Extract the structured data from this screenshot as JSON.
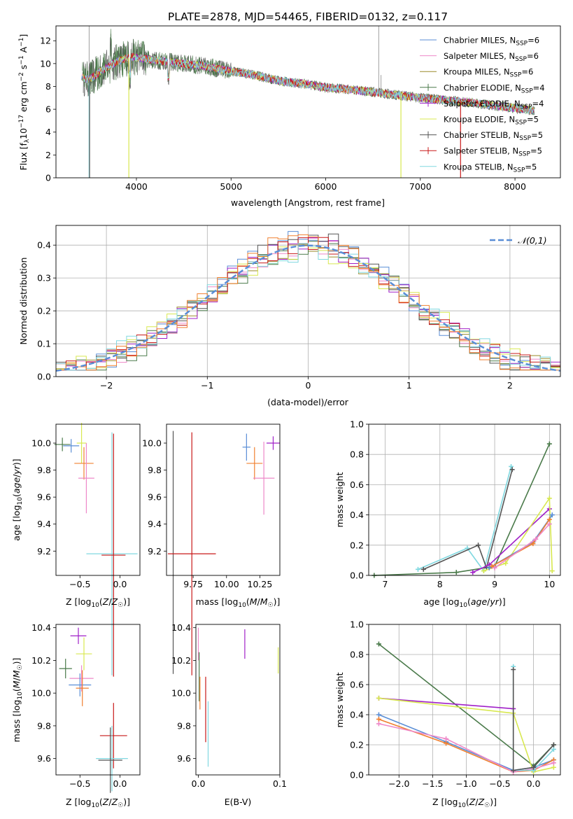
{
  "title": "PLATE=2878, MJD=54465, FIBERID=0132, z=0.117",
  "colors": {
    "c1": "#5a8ed6",
    "c2": "#ee88c8",
    "c3": "#9a8a2a",
    "c4": "#4a7a4a",
    "c5": "#a020c8",
    "c6": "#d8e850",
    "c7": "#555555",
    "c8": "#c81818",
    "c9": "#80d8e0",
    "orange": "#f08030"
  },
  "chart_data": [
    {
      "type": "line",
      "xlabel": "wavelength [Angstrom, rest frame]",
      "ylabel": "Flux [f_λ 10^-17 erg cm^-2 s^-1 A^-1]",
      "xlim": [
        3150,
        8480
      ],
      "ylim": [
        0,
        13.3
      ],
      "xticks": [
        4000,
        5000,
        6000,
        7000,
        8000
      ],
      "yticks": [
        0,
        2,
        4,
        6,
        8,
        10,
        12
      ],
      "legend_position": "top-right",
      "series": [
        {
          "name": "Chabrier MILES, N_SSP=6",
          "color": "c1"
        },
        {
          "name": "Salpeter MILES, N_SSP=6",
          "color": "c2"
        },
        {
          "name": "Kroupa MILES, N_SSP=6",
          "color": "c3"
        },
        {
          "name": "Chabrier ELODIE, N_SSP=4",
          "color": "c4"
        },
        {
          "name": "Salpeter ELODIE, N_SSP=4",
          "color": "c5"
        },
        {
          "name": "Kroupa ELODIE, N_SSP=5",
          "color": "c6"
        },
        {
          "name": "Chabrier STELIB, N_SSP=5",
          "color": "c7"
        },
        {
          "name": "Salpeter STELIB, N_SSP=5",
          "color": "c8"
        },
        {
          "name": "Kroupa STELIB, N_SSP=5",
          "color": "c9"
        }
      ],
      "continuum": [
        [
          3400,
          8.8
        ],
        [
          3500,
          8.6
        ],
        [
          3650,
          9.5
        ],
        [
          3800,
          10.2
        ],
        [
          3950,
          10.6
        ],
        [
          4100,
          10.4
        ],
        [
          4300,
          10.2
        ],
        [
          4500,
          10.0
        ],
        [
          4700,
          9.8
        ],
        [
          4900,
          9.5
        ],
        [
          5100,
          9.2
        ],
        [
          5300,
          8.9
        ],
        [
          5500,
          8.5
        ],
        [
          5800,
          8.2
        ],
        [
          6000,
          7.9
        ],
        [
          6300,
          7.7
        ],
        [
          6600,
          7.4
        ],
        [
          7000,
          7.0
        ],
        [
          7400,
          6.7
        ],
        [
          7800,
          6.3
        ],
        [
          8200,
          5.9
        ]
      ]
    },
    {
      "type": "histogram",
      "xlabel": "(data-model)/error",
      "ylabel": "Normed distribution",
      "xlim": [
        -2.5,
        2.5
      ],
      "ylim": [
        0,
        0.46
      ],
      "xticks": [
        -2,
        -1,
        0,
        1,
        2
      ],
      "yticks": [
        0.0,
        0.1,
        0.2,
        0.3,
        0.4
      ],
      "grid": true,
      "reference": {
        "name": "𝒩(0,1)",
        "style": "dashed",
        "color": "c1"
      }
    },
    {
      "type": "scatter",
      "xlabel": "Z [log10(Z/Z☉)]",
      "ylabel": "age  [log10(age/yr)]",
      "xlim": [
        -0.8,
        0.25
      ],
      "ylim": [
        9.02,
        10.14
      ],
      "xticks": [
        -0.5,
        0.0
      ],
      "yticks": [
        9.2,
        9.4,
        9.6,
        9.8,
        10.0
      ],
      "points": [
        {
          "x": -0.72,
          "y": 9.99,
          "color": "c4"
        },
        {
          "x": -0.61,
          "y": 9.98,
          "color": "c1"
        },
        {
          "x": -0.48,
          "y": 10.0,
          "color": "c6"
        },
        {
          "x": -0.45,
          "y": 9.85,
          "color": "orange"
        },
        {
          "x": -0.42,
          "y": 9.74,
          "color": "c2"
        },
        {
          "x": -0.1,
          "y": 9.18,
          "color": "c9"
        },
        {
          "x": -0.08,
          "y": 9.17,
          "color": "c8"
        }
      ]
    },
    {
      "type": "scatter",
      "xlabel": "mass [log10(M/M☉)]",
      "ylabel": "",
      "xlim": [
        9.55,
        10.4
      ],
      "ylim": [
        9.02,
        10.14
      ],
      "xticks": [
        9.75,
        10.0,
        10.25
      ],
      "xticklabels": [
        "9.75",
        "10.00",
        "10.25"
      ],
      "yticks": [
        9.2,
        9.4,
        9.6,
        9.8,
        10.0
      ],
      "points": [
        {
          "x": 9.6,
          "y": 9.19,
          "color": "c7"
        },
        {
          "x": 9.74,
          "y": 9.18,
          "color": "c8"
        },
        {
          "x": 10.15,
          "y": 9.97,
          "color": "c1"
        },
        {
          "x": 10.21,
          "y": 9.85,
          "color": "orange"
        },
        {
          "x": 10.28,
          "y": 9.74,
          "color": "c2"
        },
        {
          "x": 10.35,
          "y": 10.0,
          "color": "c5"
        }
      ]
    },
    {
      "type": "line",
      "xlabel": "age  [log10(age/yr)]",
      "ylabel": "mass weight",
      "xlim": [
        6.7,
        10.2
      ],
      "ylim": [
        0,
        1.0
      ],
      "xticks": [
        7,
        8,
        9,
        10
      ],
      "yticks": [
        0.0,
        0.2,
        0.4,
        0.6,
        0.8,
        1.0
      ],
      "grid": true,
      "series": [
        {
          "color": "c4",
          "x": [
            6.8,
            8.3,
            9.0,
            10.0
          ],
          "y": [
            0.0,
            0.02,
            0.06,
            0.87
          ]
        },
        {
          "color": "c9",
          "x": [
            7.6,
            8.5,
            8.8,
            9.3
          ],
          "y": [
            0.04,
            0.18,
            0.03,
            0.72
          ]
        },
        {
          "color": "c7",
          "x": [
            7.7,
            8.7,
            8.85,
            9.32
          ],
          "y": [
            0.04,
            0.2,
            0.05,
            0.7
          ]
        },
        {
          "color": "c5",
          "x": [
            8.6,
            8.9,
            10.0
          ],
          "y": [
            0.02,
            0.07,
            0.44
          ]
        },
        {
          "color": "c6",
          "x": [
            8.8,
            9.2,
            10.0,
            10.05
          ],
          "y": [
            0.03,
            0.08,
            0.51,
            0.03
          ]
        },
        {
          "color": "c1",
          "x": [
            8.9,
            9.7,
            10.05
          ],
          "y": [
            0.05,
            0.22,
            0.4
          ]
        },
        {
          "color": "orange",
          "x": [
            8.95,
            9.7,
            10.0
          ],
          "y": [
            0.06,
            0.21,
            0.37
          ]
        },
        {
          "color": "c2",
          "x": [
            9.0,
            9.75,
            10.0
          ],
          "y": [
            0.05,
            0.24,
            0.34
          ]
        }
      ]
    },
    {
      "type": "scatter",
      "xlabel": "Z [log10(Z/Z☉)]",
      "ylabel": "mass [log10(M/M☉)]",
      "xlim": [
        -0.8,
        0.25
      ],
      "ylim": [
        9.5,
        10.42
      ],
      "xticks": [
        -0.5,
        0.0
      ],
      "yticks": [
        9.6,
        9.8,
        10.0,
        10.2,
        10.4
      ],
      "points": [
        {
          "x": -0.68,
          "y": 10.15,
          "color": "c4"
        },
        {
          "x": -0.52,
          "y": 10.35,
          "color": "c5"
        },
        {
          "x": -0.45,
          "y": 10.24,
          "color": "c6"
        },
        {
          "x": -0.48,
          "y": 10.09,
          "color": "c2"
        },
        {
          "x": -0.5,
          "y": 10.05,
          "color": "c1"
        },
        {
          "x": -0.47,
          "y": 10.03,
          "color": "orange"
        },
        {
          "x": -0.08,
          "y": 9.74,
          "color": "c8"
        },
        {
          "x": -0.1,
          "y": 9.6,
          "color": "c9"
        },
        {
          "x": -0.12,
          "y": 9.59,
          "color": "c7"
        }
      ]
    },
    {
      "type": "scatter",
      "xlabel": "E(B-V)",
      "ylabel": "",
      "xlim": [
        -0.003,
        0.1
      ],
      "ylim": [
        9.5,
        10.42
      ],
      "xticks": [
        0.0,
        0.1
      ],
      "yticks": [
        9.6,
        9.8,
        10.0,
        10.2,
        10.4
      ],
      "points": [
        {
          "x": 0.0,
          "y": 10.3,
          "color": "c2"
        },
        {
          "x": 0.001,
          "y": 10.1,
          "color": "c4"
        },
        {
          "x": 0.002,
          "y": 10.0,
          "color": "orange"
        },
        {
          "x": 0.009,
          "y": 9.9,
          "color": "c8"
        },
        {
          "x": 0.012,
          "y": 9.75,
          "color": "c9"
        },
        {
          "x": 0.057,
          "y": 10.3,
          "color": "c5"
        },
        {
          "x": 0.098,
          "y": 10.2,
          "color": "c6"
        }
      ]
    },
    {
      "type": "line",
      "xlabel": "Z [log10(Z/Z☉)]",
      "ylabel": "mass weight",
      "xlim": [
        -2.45,
        0.4
      ],
      "ylim": [
        0,
        1.0
      ],
      "xticks": [
        -2.0,
        -1.5,
        -1.0,
        -0.5,
        0.0
      ],
      "yticks": [
        0.0,
        0.2,
        0.4,
        0.6,
        0.8,
        1.0
      ],
      "grid": true,
      "series": [
        {
          "color": "c4",
          "x": [
            -2.3,
            0.0,
            0.3
          ],
          "y": [
            0.87,
            0.06,
            0.2
          ]
        },
        {
          "color": "c5",
          "x": [
            -2.3,
            -0.3
          ],
          "y": [
            0.51,
            0.44
          ]
        },
        {
          "color": "c6",
          "x": [
            -2.3,
            -0.3,
            0.0,
            0.3
          ],
          "y": [
            0.51,
            0.41,
            0.02,
            0.05
          ]
        },
        {
          "color": "c1",
          "x": [
            -2.3,
            -1.3,
            -0.3,
            0.0,
            0.3
          ],
          "y": [
            0.4,
            0.22,
            0.03,
            0.05,
            0.1
          ]
        },
        {
          "color": "orange",
          "x": [
            -2.3,
            -1.3,
            -0.3,
            0.0,
            0.3
          ],
          "y": [
            0.37,
            0.21,
            0.02,
            0.03,
            0.1
          ]
        },
        {
          "color": "c2",
          "x": [
            -2.3,
            -1.3,
            -0.3,
            0.0,
            0.3
          ],
          "y": [
            0.34,
            0.24,
            0.02,
            0.04,
            0.08
          ]
        },
        {
          "color": "c9",
          "x": [
            -0.3,
            -0.3,
            0.0,
            0.3
          ],
          "y": [
            0.72,
            0.03,
            0.03,
            0.17
          ]
        },
        {
          "color": "c7",
          "x": [
            -0.3,
            -0.3,
            0.0,
            0.3
          ],
          "y": [
            0.7,
            0.03,
            0.05,
            0.2
          ]
        }
      ]
    }
  ]
}
